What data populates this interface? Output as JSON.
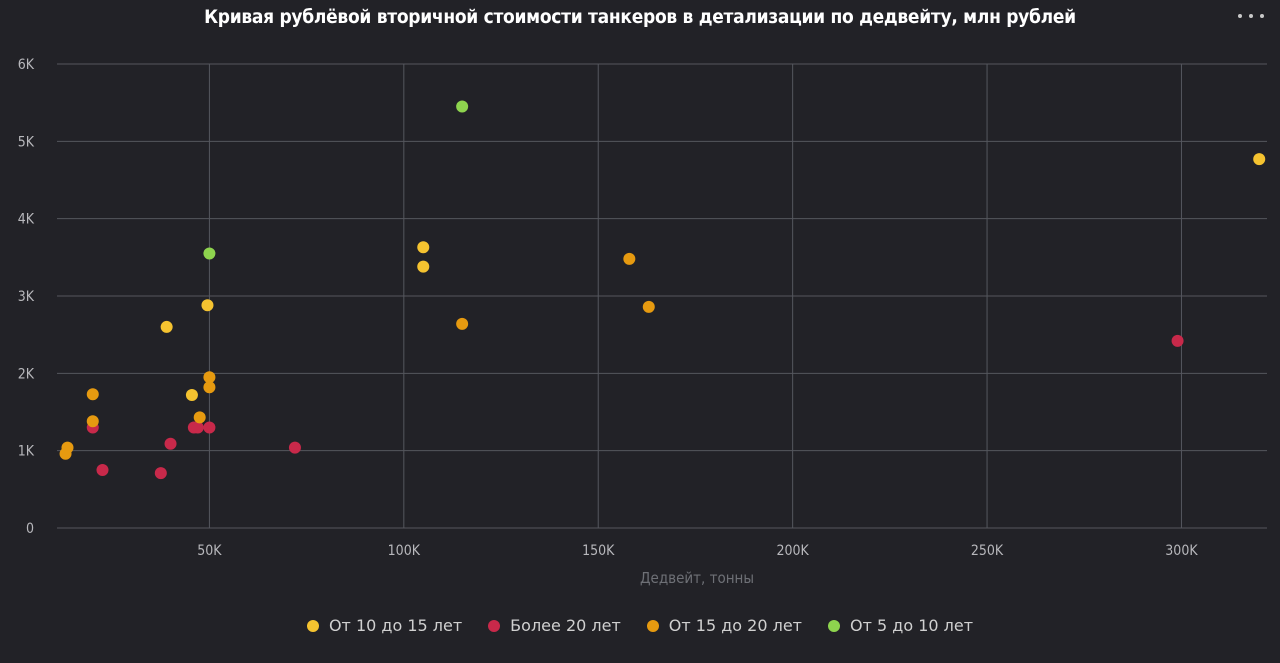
{
  "header": {
    "title": "Кривая рублёвой вторичной стоимости танкеров в детализации по дедвейту, млн рублей",
    "menu_icon": "more-horizontal-icon"
  },
  "legend": [
    {
      "label": "От 10 до 15 лет",
      "color": "#f5c330"
    },
    {
      "label": "Более 20 лет",
      "color": "#c8294a"
    },
    {
      "label": "От 15 до 20 лет",
      "color": "#e69a10"
    },
    {
      "label": "От 5 до 10 лет",
      "color": "#8ed44e"
    }
  ],
  "chart_data": {
    "type": "scatter",
    "title": "Кривая рублёвой вторичной стоимости танкеров в детализации по дедвейту, млн рублей",
    "xlabel": "Дедвейт, тонны",
    "ylabel": "",
    "xlim": [
      10800,
      322000
    ],
    "ylim": [
      0,
      6000
    ],
    "x_ticks": [
      50000,
      100000,
      150000,
      200000,
      250000,
      300000
    ],
    "x_tick_labels": [
      "50K",
      "100K",
      "150K",
      "200K",
      "250K",
      "300K"
    ],
    "y_ticks": [
      0,
      1000,
      2000,
      3000,
      4000,
      5000,
      6000
    ],
    "y_tick_labels": [
      "0",
      "1K",
      "2K",
      "3K",
      "4K",
      "5K",
      "6K"
    ],
    "grid": true,
    "legend_position": "bottom",
    "series": [
      {
        "name": "От 10 до 15 лет",
        "color": "#f5c330",
        "points": [
          [
            39000,
            2600
          ],
          [
            45500,
            1720
          ],
          [
            49500,
            2880
          ],
          [
            105000,
            3630
          ],
          [
            105000,
            3380
          ],
          [
            320000,
            4770
          ]
        ]
      },
      {
        "name": "Более 20 лет",
        "color": "#c8294a",
        "points": [
          [
            20000,
            1300
          ],
          [
            22500,
            750
          ],
          [
            37500,
            710
          ],
          [
            40000,
            1090
          ],
          [
            46000,
            1300
          ],
          [
            47000,
            1300
          ],
          [
            50000,
            1300
          ],
          [
            72000,
            1040
          ],
          [
            299000,
            2420
          ]
        ]
      },
      {
        "name": "От 15 до 20 лет",
        "color": "#e69a10",
        "points": [
          [
            13000,
            960
          ],
          [
            13500,
            1040
          ],
          [
            20000,
            1730
          ],
          [
            20000,
            1380
          ],
          [
            47500,
            1430
          ],
          [
            50000,
            1950
          ],
          [
            50000,
            1820
          ],
          [
            115000,
            2640
          ],
          [
            158000,
            3480
          ],
          [
            163000,
            2860
          ]
        ]
      },
      {
        "name": "От 5 до 10 лет",
        "color": "#8ed44e",
        "points": [
          [
            50000,
            3550
          ],
          [
            115000,
            5450
          ]
        ]
      }
    ]
  }
}
